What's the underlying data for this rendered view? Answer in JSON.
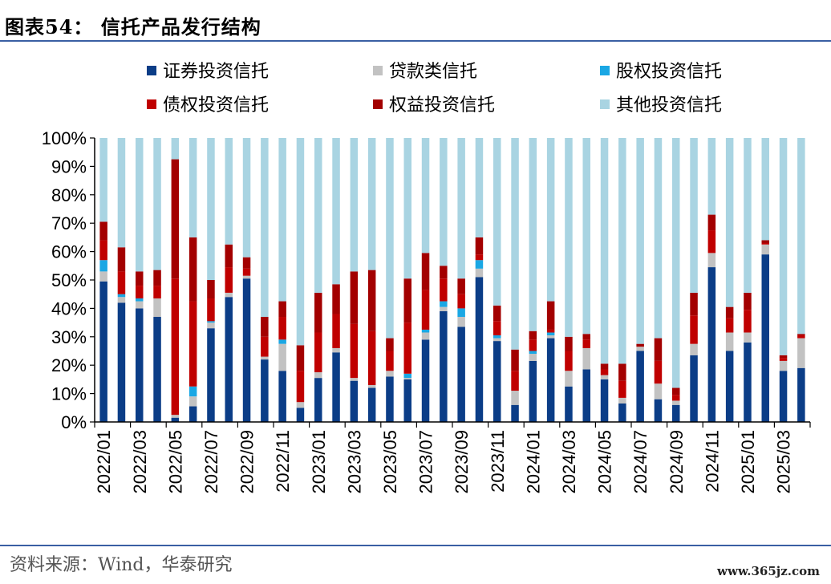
{
  "header": {
    "title": "图表54：  信托产品发行结构"
  },
  "footer": {
    "source": "资料来源：Wind，华泰研究",
    "watermark": "www.365jz.com"
  },
  "chart_data": {
    "type": "bar",
    "stacked": true,
    "percent": true,
    "title": "图表54：  信托产品发行结构",
    "xlabel": "",
    "ylabel": "",
    "ylim": [
      0,
      100
    ],
    "yticks": [
      "0%",
      "10%",
      "20%",
      "30%",
      "40%",
      "50%",
      "60%",
      "70%",
      "80%",
      "90%",
      "100%"
    ],
    "legend_position": "top",
    "grid": false,
    "x_tick_labels": [
      "2022/01",
      "2022/03",
      "2022/05",
      "2022/07",
      "2022/09",
      "2022/11",
      "2023/01",
      "2023/03",
      "2023/05",
      "2023/07",
      "2023/09",
      "2023/11",
      "2024/01",
      "2024/03",
      "2024/05",
      "2024/07",
      "2024/09",
      "2024/11",
      "2025/01",
      "2025/03"
    ],
    "categories": [
      "2022/01",
      "2022/02",
      "2022/03",
      "2022/04",
      "2022/05",
      "2022/06",
      "2022/07",
      "2022/08",
      "2022/09",
      "2022/10",
      "2022/11",
      "2022/12",
      "2023/01",
      "2023/02",
      "2023/03",
      "2023/04",
      "2023/05",
      "2023/06",
      "2023/07",
      "2023/08",
      "2023/09",
      "2023/10",
      "2023/11",
      "2023/12",
      "2024/01",
      "2024/02",
      "2024/03",
      "2024/04",
      "2024/05",
      "2024/06",
      "2024/07",
      "2024/08",
      "2024/09",
      "2024/10",
      "2024/11",
      "2024/12",
      "2025/01",
      "2025/02",
      "2025/03",
      "2025/04"
    ],
    "series": [
      {
        "name": "证券投资信托",
        "color": "#0b3d87",
        "values": [
          49.5,
          42,
          40,
          37,
          1.5,
          5.5,
          33,
          44,
          50.5,
          22,
          18,
          5,
          15.5,
          24.5,
          14.5,
          12,
          16,
          15,
          29,
          39,
          33.5,
          51,
          28.5,
          6,
          21.5,
          29.5,
          12.5,
          18.5,
          15,
          6.5,
          25,
          8,
          6,
          23.5,
          54.5,
          25,
          28,
          59,
          18,
          19
        ]
      },
      {
        "name": "贷款类信托",
        "color": "#c2c2c2",
        "values": [
          3.5,
          2,
          2.5,
          6.5,
          1,
          3.5,
          2,
          1.5,
          1,
          1,
          9.5,
          2,
          2,
          1.5,
          1,
          1,
          2,
          0.5,
          2.5,
          1.5,
          3.5,
          3,
          1,
          5,
          2.5,
          1,
          5.5,
          7.5,
          1.5,
          2,
          1.5,
          5.5,
          1.5,
          4,
          5,
          6.5,
          3.5,
          3.5,
          3.5,
          10.5
        ]
      },
      {
        "name": "股权投资信托",
        "color": "#1aa7e4",
        "values": [
          4,
          1,
          1,
          0,
          0,
          3.5,
          0.5,
          0,
          0,
          0,
          1.5,
          0,
          0,
          0,
          0,
          0,
          0,
          1.5,
          1,
          2,
          3,
          3,
          1,
          0,
          1,
          1,
          0,
          0,
          0,
          0,
          0,
          0,
          0,
          0,
          0,
          0,
          0,
          0,
          0,
          0
        ]
      },
      {
        "name": "债权投资信托",
        "color": "#c00000",
        "values": [
          7,
          8,
          4.5,
          4.5,
          48,
          30,
          8,
          9,
          2.5,
          7,
          8,
          11,
          14,
          12,
          19,
          19,
          7,
          18,
          14,
          8,
          5,
          2,
          5,
          7,
          4,
          1,
          7,
          3,
          2,
          6,
          0,
          8,
          2,
          10,
          8,
          5,
          8,
          0.5,
          1,
          1
        ]
      },
      {
        "name": "权益投资信托",
        "color": "#a30000",
        "values": [
          6.5,
          8.5,
          5,
          5.5,
          42,
          22.5,
          6.5,
          8,
          4,
          7,
          5.5,
          9,
          14,
          10.5,
          18.5,
          21.5,
          4.5,
          15.5,
          13,
          4.5,
          5.5,
          6,
          5.5,
          7.5,
          3,
          10,
          5,
          2,
          2,
          6,
          1,
          8,
          2.5,
          8,
          5.5,
          4,
          6,
          1,
          1,
          0.5
        ]
      },
      {
        "name": "其他投资信托",
        "color": "#a9d4e2",
        "values": [
          29.5,
          38.5,
          47,
          46.5,
          7.5,
          35,
          50,
          37.5,
          42,
          63,
          57.5,
          73,
          54.5,
          51.5,
          47,
          46.5,
          70.5,
          49.5,
          40.5,
          45,
          49.5,
          35,
          59,
          74.5,
          68,
          57.5,
          70,
          69,
          79.5,
          79.5,
          72.5,
          70.5,
          88,
          54.5,
          27,
          59.5,
          54.5,
          36,
          76.5,
          69
        ]
      }
    ]
  }
}
